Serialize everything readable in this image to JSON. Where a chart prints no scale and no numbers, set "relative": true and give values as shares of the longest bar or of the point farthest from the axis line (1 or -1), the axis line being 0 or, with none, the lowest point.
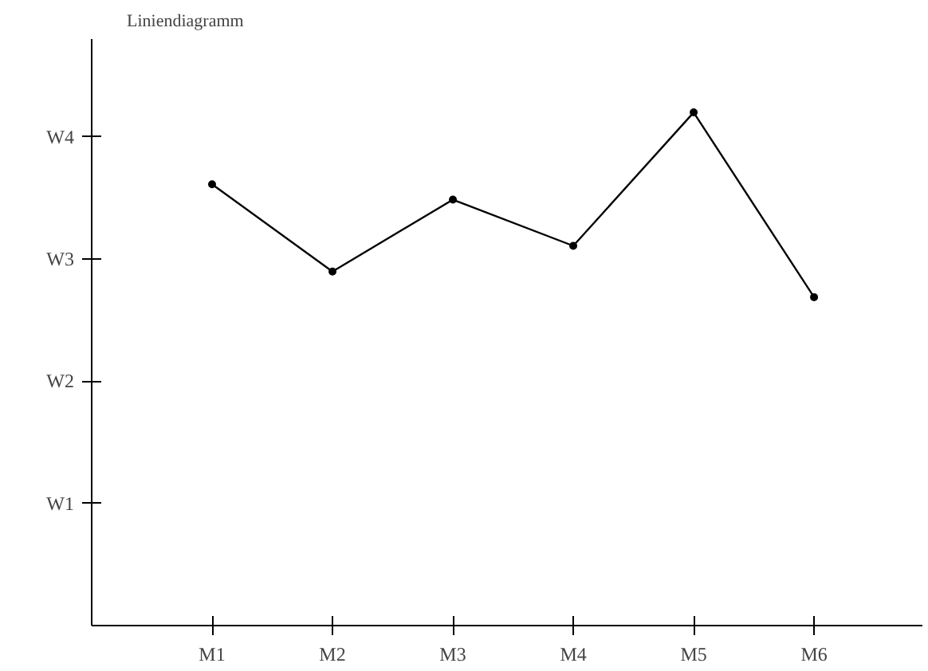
{
  "chart_data": {
    "type": "line",
    "title": "Liniendiagramm",
    "categories": [
      "M1",
      "M2",
      "M3",
      "M4",
      "M5",
      "M6"
    ],
    "series": [
      {
        "color": "#000000",
        "values": [
          0.86,
          0.69,
          0.83,
          0.74,
          1,
          0.64
        ]
      }
    ],
    "relative": true,
    "annotations": [
      "W1",
      "W2",
      "W3",
      "W4"
    ],
    "marker": "circle",
    "line_style": "solid",
    "grid": false
  }
}
